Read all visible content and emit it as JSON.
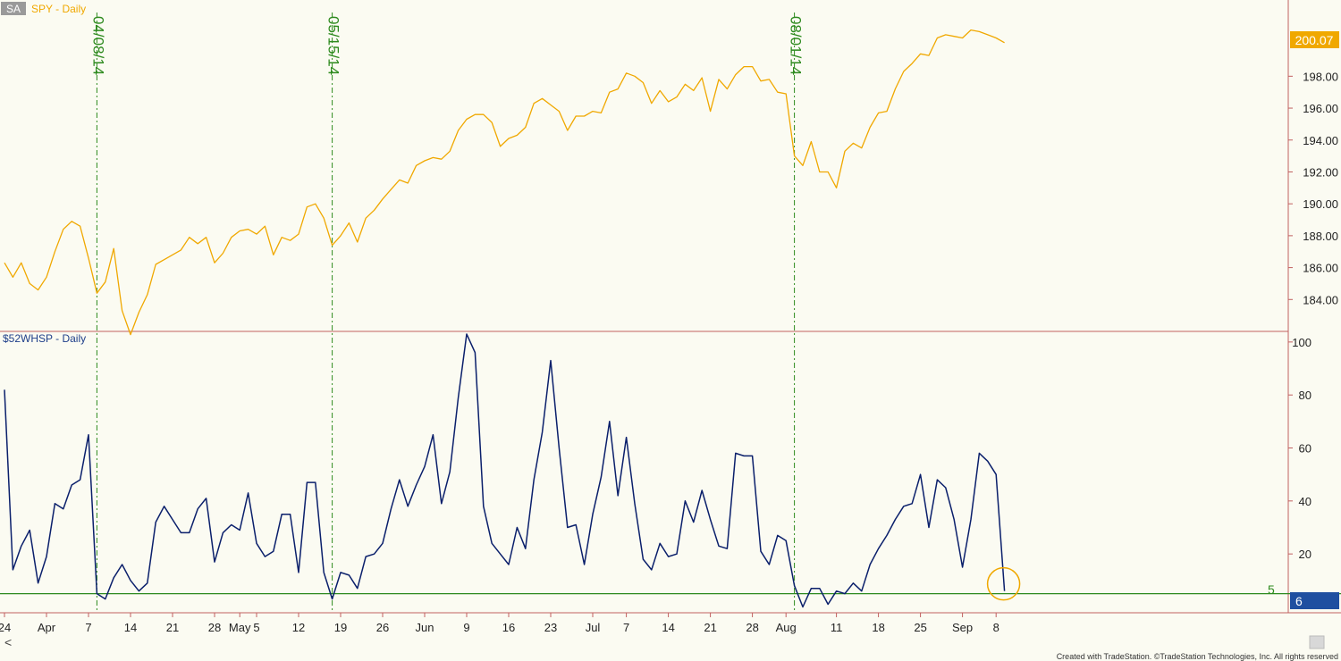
{
  "app": {
    "corner_badge": "SA"
  },
  "colors": {
    "background": "#fbfbf2",
    "spy": "#f0a800",
    "breadth": "#0a1f6b",
    "event_line": "#2d8a1e",
    "threshold": "#2d8a1e",
    "axis_line": "#c06060",
    "highlight_circle": "#f0a800",
    "spy_tag": "#f0a800",
    "breadth_tag": "#1f4fa0"
  },
  "chart_data": [
    {
      "type": "line",
      "title": "SPY - Daily",
      "last_value_tag": "200.07",
      "ylim": [
        182,
        200.5
      ],
      "yticks": [
        "184.00",
        "186.00",
        "188.00",
        "190.00",
        "192.00",
        "194.00",
        "196.00",
        "198.00"
      ],
      "series": [
        {
          "name": "SPY",
          "color": "#f0a800",
          "values": [
            186.3,
            185.4,
            186.3,
            185.0,
            184.6,
            185.4,
            187.0,
            188.4,
            188.9,
            188.6,
            186.6,
            184.4,
            185.1,
            187.2,
            183.3,
            181.8,
            183.2,
            184.3,
            186.2,
            186.5,
            186.8,
            187.1,
            187.9,
            187.5,
            187.9,
            186.3,
            186.9,
            187.9,
            188.3,
            188.4,
            188.1,
            188.6,
            186.8,
            187.9,
            187.7,
            188.1,
            189.8,
            190.0,
            189.1,
            187.4,
            188.0,
            188.8,
            187.6,
            189.1,
            189.6,
            190.3,
            190.9,
            191.5,
            191.3,
            192.4,
            192.7,
            192.9,
            192.8,
            193.3,
            194.6,
            195.3,
            195.6,
            195.6,
            195.1,
            193.6,
            194.1,
            194.3,
            194.8,
            196.3,
            196.6,
            196.2,
            195.8,
            194.6,
            195.5,
            195.5,
            195.8,
            195.7,
            197.0,
            197.2,
            198.2,
            198.0,
            197.6,
            196.3,
            197.1,
            196.4,
            196.7,
            197.5,
            197.1,
            197.9,
            195.8,
            197.8,
            197.2,
            198.1,
            198.6,
            198.6,
            197.7,
            197.8,
            197.0,
            196.9,
            193.0,
            192.4,
            193.9,
            192.0,
            192.0,
            191.0,
            193.3,
            193.8,
            193.5,
            194.8,
            195.7,
            195.8,
            197.2,
            198.3,
            198.8,
            199.4,
            199.3,
            200.4,
            200.6,
            200.5,
            200.4,
            200.9,
            200.8,
            200.6,
            200.4,
            200.1
          ]
        }
      ]
    },
    {
      "type": "line",
      "title": "$52WHSP - Daily",
      "last_value_tag": "6",
      "threshold_label": "5",
      "threshold": 5,
      "ylim": [
        -1,
        107
      ],
      "yticks": [
        "20",
        "40",
        "60",
        "80",
        "100"
      ],
      "series": [
        {
          "name": "$52WHSP",
          "color": "#0a1f6b",
          "values": [
            82,
            14,
            23,
            29,
            9,
            19,
            39,
            37,
            46,
            48,
            65,
            5,
            3,
            11,
            16,
            10,
            6,
            9,
            32,
            38,
            33,
            28,
            28,
            37,
            41,
            17,
            28,
            31,
            29,
            43,
            24,
            19,
            21,
            35,
            35,
            13,
            47,
            47,
            13,
            3,
            13,
            12,
            7,
            19,
            20,
            24,
            37,
            48,
            38,
            46,
            53,
            65,
            39,
            51,
            79,
            103,
            96,
            38,
            24,
            20,
            16,
            30,
            22,
            48,
            66,
            93,
            60,
            30,
            31,
            16,
            35,
            49,
            70,
            42,
            64,
            39,
            18,
            14,
            24,
            19,
            20,
            40,
            32,
            44,
            33,
            23,
            22,
            58,
            57,
            57,
            21,
            16,
            27,
            25,
            8,
            0,
            7,
            7,
            1,
            6,
            5,
            9,
            6,
            16,
            22,
            27,
            33,
            38,
            39,
            50,
            30,
            48,
            45,
            33,
            15,
            33,
            58,
            55,
            50,
            6
          ]
        }
      ]
    }
  ],
  "x_axis": {
    "labels": [
      {
        "text": "24",
        "i": 0
      },
      {
        "text": "Apr",
        "i": 5
      },
      {
        "text": "7",
        "i": 10
      },
      {
        "text": "14",
        "i": 15
      },
      {
        "text": "21",
        "i": 20
      },
      {
        "text": "28",
        "i": 25
      },
      {
        "text": "May",
        "i": 28
      },
      {
        "text": "5",
        "i": 30
      },
      {
        "text": "12",
        "i": 35
      },
      {
        "text": "19",
        "i": 40
      },
      {
        "text": "26",
        "i": 45
      },
      {
        "text": "Jun",
        "i": 50
      },
      {
        "text": "9",
        "i": 55
      },
      {
        "text": "16",
        "i": 60
      },
      {
        "text": "23",
        "i": 65
      },
      {
        "text": "Jul",
        "i": 70
      },
      {
        "text": "7",
        "i": 74
      },
      {
        "text": "14",
        "i": 79
      },
      {
        "text": "21",
        "i": 84
      },
      {
        "text": "28",
        "i": 89
      },
      {
        "text": "Aug",
        "i": 93
      },
      {
        "text": "11",
        "i": 99
      },
      {
        "text": "18",
        "i": 104
      },
      {
        "text": "25",
        "i": 109
      },
      {
        "text": "Sep",
        "i": 114
      },
      {
        "text": "8",
        "i": 118
      }
    ],
    "scroll_left_glyph": "<"
  },
  "events": [
    {
      "label": "04/08/14",
      "i": 11
    },
    {
      "label": "05/15/14",
      "i": 39
    },
    {
      "label": "08/01/14",
      "i": 94
    }
  ],
  "footer": {
    "credit": "Created with TradeStation. ©TradeStation Technologies, Inc. All rights reserved"
  }
}
